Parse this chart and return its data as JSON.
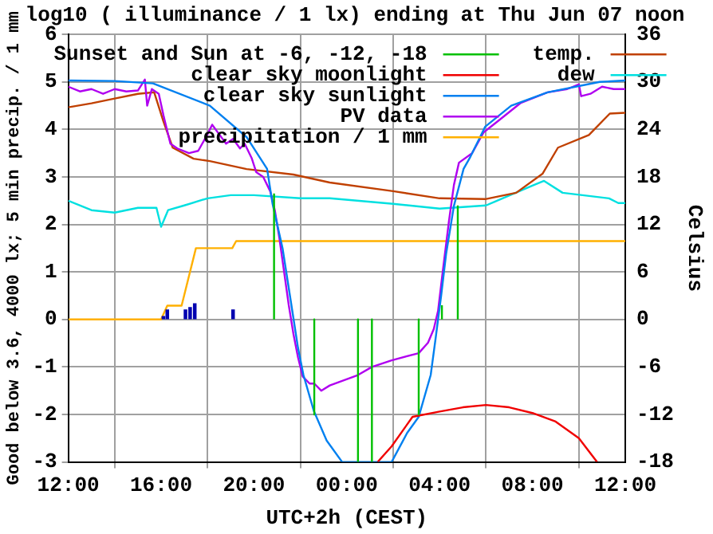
{
  "chart_data": {
    "type": "line",
    "title": "log10 ( illuminance / 1 lx) ending at Thu Jun 07 noon",
    "xlabel": "UTC+2h (CEST)",
    "ylabel": "Good below 3.6, 4000 lx; 5 min precip. / 1 mm",
    "y2label": "Celsius",
    "xlim": [
      "--06-06T12:00",
      "--06-07T12:00"
    ],
    "xticks": [
      {
        "value": "--06-06T12:00",
        "label": "12:00"
      },
      {
        "value": "--06-06T16:00",
        "label": "16:00"
      },
      {
        "value": "--06-06T20:00",
        "label": "20:00"
      },
      {
        "value": "--06-07T00:00",
        "label": "00:00"
      },
      {
        "value": "--06-07T04:00",
        "label": "04:00"
      },
      {
        "value": "--06-07T08:00",
        "label": "08:00"
      },
      {
        "value": "--06-07T12:00",
        "label": "12:00"
      }
    ],
    "ylim": [
      -3,
      6
    ],
    "yticks": [
      -3,
      -2,
      -1,
      0,
      1,
      2,
      3,
      4,
      5,
      6
    ],
    "y2lim": [
      -18,
      36
    ],
    "y2ticks": [
      -18,
      -12,
      -6,
      0,
      6,
      12,
      18,
      24,
      30,
      36
    ],
    "grid": true,
    "legend": "top",
    "marker": "none",
    "line_style": "solid",
    "series": [
      {
        "name": "Sunset and Sun at -6, -12, -18",
        "color": "#00c000",
        "x": [
          "--06-06T20:52",
          "--06-06T20:52",
          null,
          "--06-06T22:36",
          "--06-06T22:36",
          null,
          "--06-07T00:29",
          "--06-07T00:29",
          null,
          "--06-07T01:05",
          "--06-07T01:05",
          null,
          "--06-07T03:06",
          "--06-07T03:06",
          null,
          "--06-07T04:06",
          "--06-07T04:06",
          null,
          "--06-07T04:47",
          "--06-07T04:47"
        ],
        "values": [
          0,
          2.65,
          null,
          0,
          -2,
          null,
          0,
          -3,
          null,
          0,
          -3,
          null,
          0,
          -2,
          null,
          0,
          0.3,
          null,
          0,
          2.4
        ]
      },
      {
        "name": "clear sky moonlight",
        "color": "#f00000",
        "x": [
          "--06-07T01:20",
          "--06-07T01:56",
          "--06-07T02:50",
          "--06-07T04:00",
          "--06-07T05:00",
          "--06-07T06:00",
          "--06-07T07:00",
          "--06-07T08:00",
          "--06-07T09:00",
          "--06-07T10:00",
          "--06-07T10:47"
        ],
        "values": [
          -3,
          -2.67,
          -2.05,
          -1.94,
          -1.85,
          -1.8,
          -1.85,
          -1.97,
          -2.15,
          -2.5,
          -3
        ]
      },
      {
        "name": "clear sky sunlight",
        "color": "#0080f0",
        "x": [
          "--06-06T12:00",
          "--06-06T14:00",
          "--06-06T15:39",
          "--06-06T18:06",
          "--06-06T19:42",
          "--06-06T20:34",
          "--06-06T20:48",
          "--06-06T21:14",
          "--06-06T21:35",
          "--06-06T21:54",
          "--06-06T22:08",
          "--06-06T22:35",
          "--06-06T23:08",
          "--06-06T23:48",
          "--06-07T01:56",
          "--06-07T02:36",
          "--06-07T03:06",
          "--06-07T03:37",
          "--06-07T03:50",
          "--06-07T04:04",
          "--06-07T04:17",
          "--06-07T04:37",
          "--06-07T05:02",
          "--06-07T05:18",
          "--06-07T05:58",
          "--06-07T07:05",
          "--06-07T08:39",
          "--06-07T10:54",
          "--06-07T12:00"
        ],
        "values": [
          5.03,
          5.02,
          4.97,
          4.5,
          3.83,
          3.17,
          2.44,
          1.5,
          0.4,
          -0.6,
          -1.17,
          -1.93,
          -2.55,
          -3,
          -3,
          -2.39,
          -2.05,
          -1.17,
          -0.38,
          0.5,
          1.39,
          2.39,
          3.17,
          3.4,
          4.06,
          4.5,
          4.78,
          5,
          5.03
        ]
      },
      {
        "name": "PV data",
        "color": "#b000f0",
        "x": [
          "--06-06T12:00",
          "--06-06T12:30",
          "--06-06T13:00",
          "--06-06T13:30",
          "--06-06T14:00",
          "--06-06T14:30",
          "--06-06T15:00",
          "--06-06T15:18",
          "--06-06T15:24",
          "--06-06T15:36",
          "--06-06T15:54",
          "--06-06T16:06",
          "--06-06T16:24",
          "--06-06T16:42",
          "--06-06T17:12",
          "--06-06T17:36",
          "--06-06T18:00",
          "--06-06T18:12",
          "--06-06T18:30",
          "--06-06T18:48",
          "--06-06T19:06",
          "--06-06T19:24",
          "--06-06T19:36",
          "--06-06T19:54",
          "--06-06T20:06",
          "--06-06T20:24",
          "--06-06T20:42",
          "--06-06T20:54",
          "--06-06T21:06",
          "--06-06T21:18",
          "--06-06T21:30",
          "--06-06T21:42",
          "--06-06T21:54",
          "--06-06T22:06",
          "--06-06T22:24",
          "--06-06T22:36",
          "--06-06T22:54",
          "--06-06T23:16",
          "--06-07T00:29",
          "--06-07T01:05",
          "--06-07T01:56",
          "--06-07T03:06",
          "--06-07T03:30",
          "--06-07T03:45",
          "--06-07T03:56",
          "--06-07T04:09",
          "--06-07T04:24",
          "--06-07T04:37",
          "--06-07T04:50",
          "--06-07T05:24",
          "--06-07T05:54",
          "--06-07T06:30",
          "--06-07T07:30",
          "--06-07T08:39",
          "--06-07T09:30",
          "--06-07T10:00",
          "--06-07T10:06",
          "--06-07T10:30",
          "--06-07T11:00",
          "--06-07T11:30",
          "--06-07T12:00"
        ],
        "values": [
          4.9,
          4.8,
          4.85,
          4.75,
          4.85,
          4.8,
          4.82,
          5.05,
          4.5,
          4.85,
          4.75,
          4.3,
          3.7,
          3.6,
          3.5,
          3.55,
          3.9,
          4.1,
          3.9,
          3.7,
          3.8,
          3.6,
          3.7,
          3.4,
          3.1,
          3.0,
          2.7,
          2.3,
          1.7,
          1.0,
          0.3,
          -0.3,
          -0.8,
          -1.2,
          -1.35,
          -1.35,
          -1.5,
          -1.39,
          -1.17,
          -1.0,
          -0.86,
          -0.71,
          -0.49,
          -0.2,
          0.18,
          1.07,
          2.06,
          2.83,
          3.3,
          3.5,
          3.94,
          4.17,
          4.56,
          4.78,
          4.85,
          4.95,
          4.7,
          4.75,
          4.9,
          4.85,
          4.85
        ]
      },
      {
        "name": "precipitation / 1 mm",
        "color": "#ffb000",
        "x": [
          "--06-06T12:00",
          "--06-06T16:00",
          "--06-06T16:16",
          "--06-06T16:53",
          "--06-06T17:30",
          "--06-06T19:04",
          "--06-06T19:14",
          "--06-07T12:00"
        ],
        "values": [
          0,
          0,
          0.29,
          0.29,
          1.5,
          1.5,
          1.65,
          1.65
        ]
      },
      {
        "name": "temp.",
        "color": "#c04000",
        "axis": "y2",
        "x": [
          "--06-06T12:00",
          "--06-06T13:00",
          "--06-06T14:00",
          "--06-06T15:00",
          "--06-06T15:42",
          "--06-06T16:06",
          "--06-06T16:30",
          "--06-06T17:24",
          "--06-06T18:06",
          "--06-06T19:41",
          "--06-06T21:42",
          "--06-06T23:16",
          "--06-07T02:00",
          "--06-07T04:00",
          "--06-07T05:58",
          "--06-07T07:18",
          "--06-07T08:26",
          "--06-07T09:06",
          "--06-07T10:26",
          "--06-07T11:20",
          "--06-07T12:00"
        ],
        "values": [
          26.8,
          27.3,
          27.9,
          28.5,
          28.7,
          25,
          21.7,
          20.3,
          20,
          19,
          18.3,
          17.3,
          16.2,
          15.3,
          15.2,
          16,
          18.4,
          21.7,
          23.3,
          26,
          26.1
        ]
      },
      {
        "name": "dew",
        "color": "#00e0e0",
        "axis": "y2",
        "x": [
          "--06-06T12:00",
          "--06-06T13:00",
          "--06-06T14:00",
          "--06-06T15:00",
          "--06-06T15:48",
          "--06-06T16:00",
          "--06-06T16:18",
          "--06-06T17:00",
          "--06-06T18:00",
          "--06-06T19:00",
          "--06-06T20:00",
          "--06-06T22:00",
          "--06-06T23:16",
          "--06-07T02:00",
          "--06-07T04:00",
          "--06-07T06:00",
          "--06-07T08:00",
          "--06-07T08:30",
          "--06-07T09:18",
          "--06-07T11:18",
          "--06-07T11:42",
          "--06-07T12:00"
        ],
        "values": [
          15,
          13.8,
          13.5,
          14.1,
          14.1,
          11.7,
          13.8,
          14.4,
          15.3,
          15.7,
          15.7,
          15.3,
          15.3,
          14.6,
          14,
          14.4,
          16.9,
          17.5,
          16,
          15.3,
          14.7,
          14.7
        ]
      },
      {
        "type": "bar",
        "color": "#0000b0",
        "x": [
          "--06-06T16:06",
          "--06-06T16:16",
          "--06-06T17:03",
          "--06-06T17:15",
          "--06-06T17:27",
          "--06-06T19:06"
        ],
        "values": [
          0.06,
          0.2,
          0.2,
          0.25,
          0.33,
          0.2
        ]
      }
    ]
  }
}
